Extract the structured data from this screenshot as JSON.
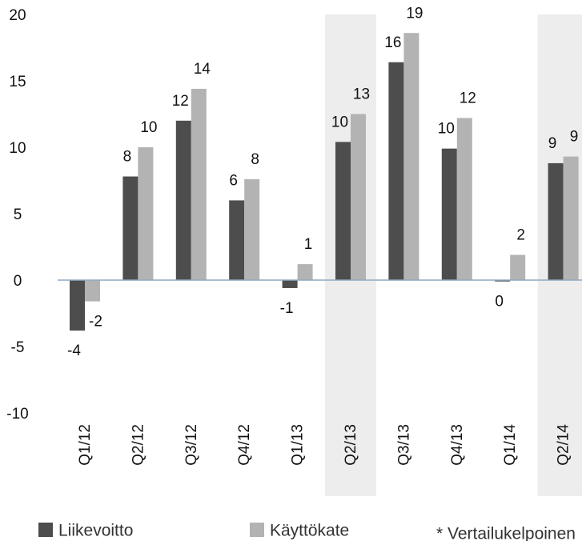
{
  "chart_data": {
    "type": "bar",
    "categories": [
      "Q1/12",
      "Q2/12",
      "Q3/12",
      "Q4/12",
      "Q1/13",
      "Q2/13",
      "Q3/13",
      "Q4/13",
      "Q1/14",
      "Q2/14"
    ],
    "series": [
      {
        "name": "Liikevoitto",
        "color": "#4d4d4d",
        "values": [
          -3.8,
          7.8,
          12.0,
          6.0,
          -0.6,
          10.4,
          16.4,
          9.9,
          -0.1,
          8.8
        ],
        "value_labels": [
          "-4",
          "8",
          "12",
          "6",
          "-1",
          "10",
          "16",
          "10",
          "0",
          "9"
        ]
      },
      {
        "name": "Käyttökate",
        "color": "#b3b3b3",
        "values": [
          -1.6,
          10.0,
          14.4,
          7.6,
          1.2,
          12.5,
          18.6,
          12.2,
          1.9,
          9.3
        ],
        "value_labels": [
          "-2",
          "10",
          "14",
          "8",
          "1",
          "13",
          "19",
          "12",
          "2",
          "9"
        ]
      }
    ],
    "ylim": [
      -10,
      20
    ],
    "yticks": [
      -10,
      -5,
      0,
      5,
      10,
      15,
      20
    ],
    "highlight": [
      5,
      9
    ],
    "footnote": "* Vertailukelpoinen"
  }
}
